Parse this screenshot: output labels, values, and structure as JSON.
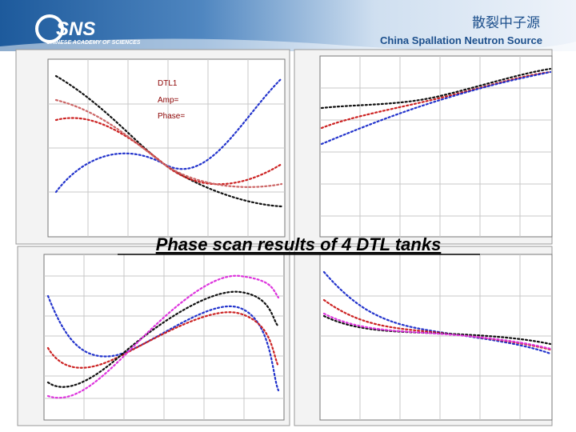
{
  "header": {
    "logo": "SNS",
    "logo_sub": "CHINESE ACADEMY OF SCIENCES",
    "title_cn": "散裂中子源",
    "title_en": "China Spallation Neutron Source"
  },
  "panels": [
    {
      "annotations": [
        "DTL1",
        "Amp=",
        "Phase="
      ]
    }
  ],
  "caption": "Phase scan results of 4 DTL tanks"
}
